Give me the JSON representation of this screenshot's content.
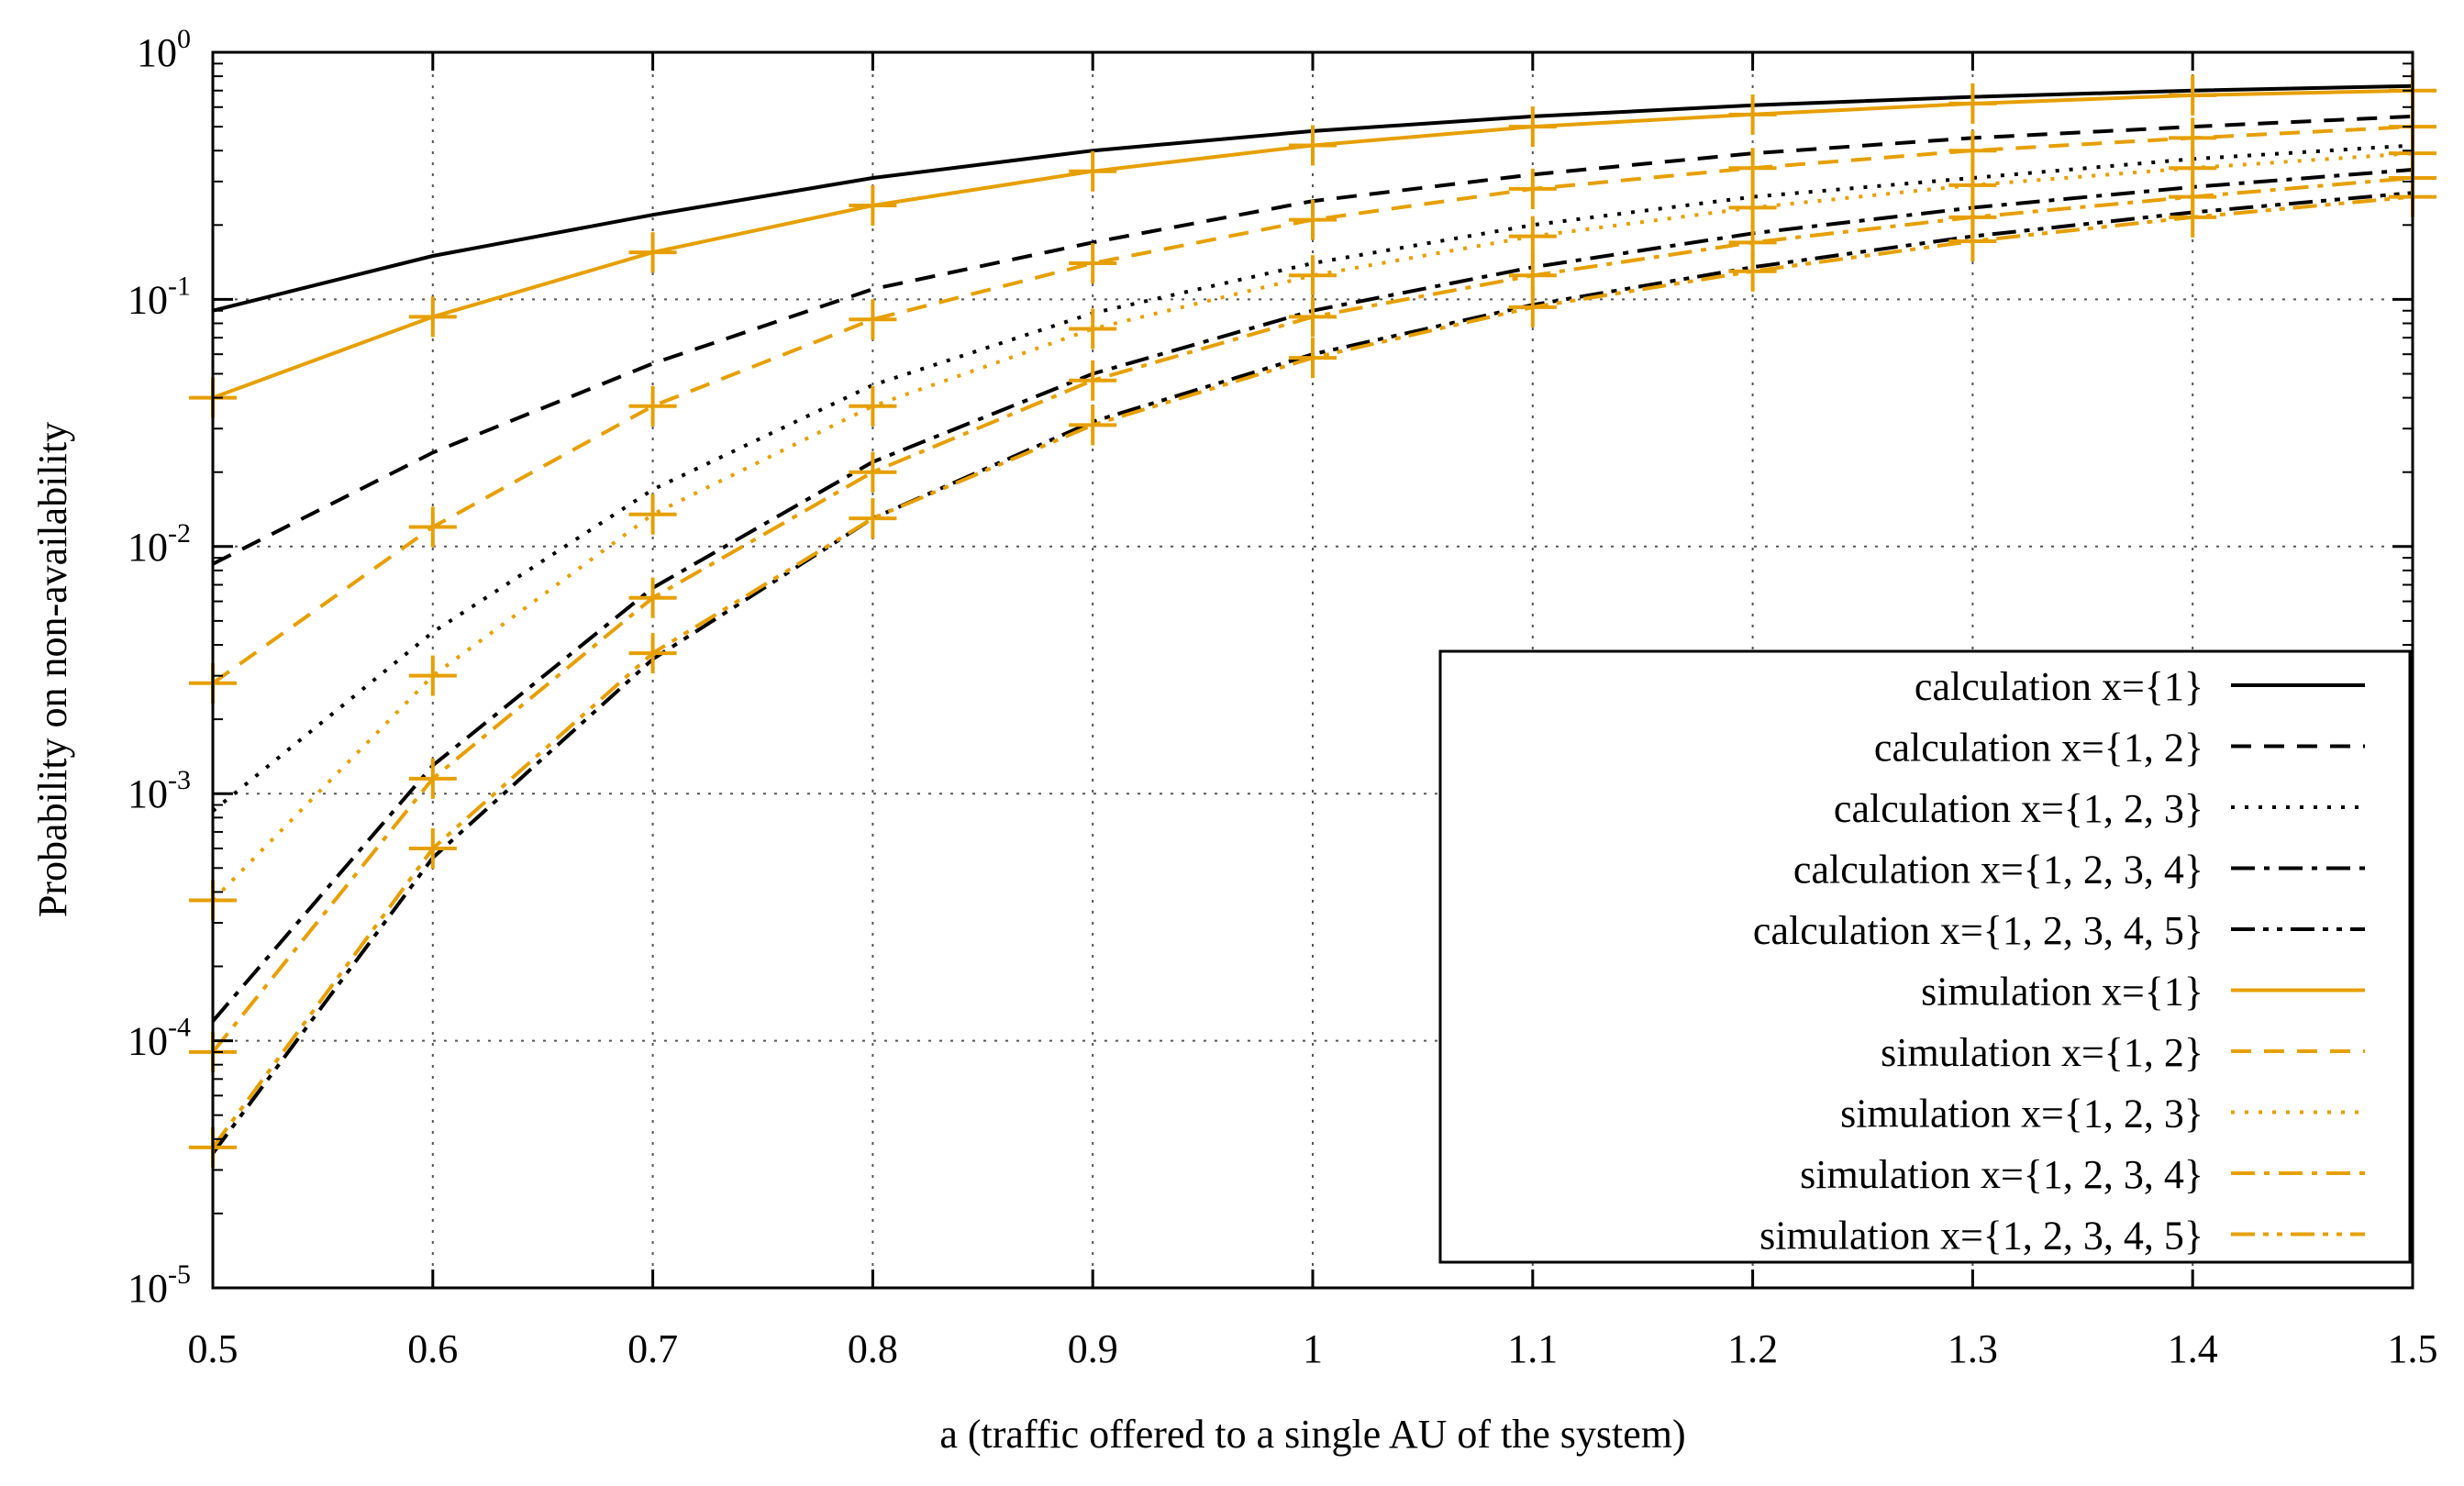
{
  "chart_data": {
    "type": "line",
    "title": "",
    "xlabel": "a (traffic offered to a single AU of the system)",
    "ylabel": "Probability on non-availability",
    "x": [
      0.5,
      0.6,
      0.7,
      0.8,
      0.9,
      1.0,
      1.1,
      1.2,
      1.3,
      1.4,
      1.5
    ],
    "xlim": [
      0.5,
      1.5
    ],
    "ylim": [
      1e-05,
      1
    ],
    "yscale": "log",
    "xticks": [
      "0.5",
      "0.6",
      "0.7",
      "0.8",
      "0.9",
      "1",
      "1.1",
      "1.2",
      "1.3",
      "1.4",
      "1.5"
    ],
    "yticks": [
      {
        "value": 1,
        "base": "10",
        "exp": "0"
      },
      {
        "value": 0.1,
        "base": "10",
        "exp": "-1"
      },
      {
        "value": 0.01,
        "base": "10",
        "exp": "-2"
      },
      {
        "value": 0.001,
        "base": "10",
        "exp": "-3"
      },
      {
        "value": 0.0001,
        "base": "10",
        "exp": "-4"
      },
      {
        "value": 1e-05,
        "base": "10",
        "exp": "-5"
      }
    ],
    "grid": true,
    "legend_position": "bottom-right",
    "colors": {
      "calculation": "#000000",
      "simulation": "#e69f00"
    },
    "series": [
      {
        "name": "calculation  x={1}",
        "kind": "calculation",
        "dash": "solid",
        "values": [
          0.09,
          0.15,
          0.22,
          0.31,
          0.4,
          0.48,
          0.55,
          0.61,
          0.66,
          0.7,
          0.73
        ]
      },
      {
        "name": "calculation  x={1, 2}",
        "kind": "calculation",
        "dash": "dashed",
        "values": [
          0.0085,
          0.024,
          0.055,
          0.11,
          0.17,
          0.25,
          0.32,
          0.39,
          0.45,
          0.5,
          0.55
        ]
      },
      {
        "name": "calculation  x={1, 2, 3}",
        "kind": "calculation",
        "dash": "dotted",
        "values": [
          0.00085,
          0.0045,
          0.017,
          0.045,
          0.088,
          0.14,
          0.2,
          0.26,
          0.31,
          0.37,
          0.42
        ]
      },
      {
        "name": "calculation  x={1, 2, 3, 4}",
        "kind": "calculation",
        "dash": "dashdot",
        "values": [
          0.00012,
          0.0013,
          0.0068,
          0.022,
          0.05,
          0.09,
          0.135,
          0.185,
          0.235,
          0.285,
          0.335
        ]
      },
      {
        "name": "calculation  x={1, 2, 3, 4, 5}",
        "kind": "calculation",
        "dash": "dashdotdot",
        "values": [
          3.5e-05,
          0.00055,
          0.0035,
          0.013,
          0.032,
          0.06,
          0.095,
          0.135,
          0.18,
          0.225,
          0.27
        ]
      },
      {
        "name": "simulation  x={1}",
        "kind": "simulation",
        "dash": "solid",
        "values": [
          0.04,
          0.085,
          0.155,
          0.24,
          0.33,
          0.42,
          0.5,
          0.56,
          0.62,
          0.67,
          0.7
        ]
      },
      {
        "name": "simulation  x={1, 2}",
        "kind": "simulation",
        "dash": "dashed",
        "values": [
          0.0028,
          0.012,
          0.037,
          0.083,
          0.14,
          0.21,
          0.28,
          0.34,
          0.4,
          0.45,
          0.5
        ]
      },
      {
        "name": "simulation  x={1, 2, 3}",
        "kind": "simulation",
        "dash": "dotted",
        "values": [
          0.00037,
          0.003,
          0.0135,
          0.037,
          0.076,
          0.125,
          0.18,
          0.235,
          0.29,
          0.34,
          0.39
        ]
      },
      {
        "name": "simulation  x={1, 2, 3, 4}",
        "kind": "simulation",
        "dash": "dashdot",
        "values": [
          9e-05,
          0.00115,
          0.0062,
          0.02,
          0.047,
          0.085,
          0.125,
          0.17,
          0.215,
          0.26,
          0.31
        ]
      },
      {
        "name": "simulation  x={1, 2, 3, 4, 5}",
        "kind": "simulation",
        "dash": "dashdotdot",
        "values": [
          3.7e-05,
          0.0006,
          0.0037,
          0.013,
          0.031,
          0.058,
          0.093,
          0.13,
          0.172,
          0.215,
          0.26
        ]
      }
    ]
  }
}
